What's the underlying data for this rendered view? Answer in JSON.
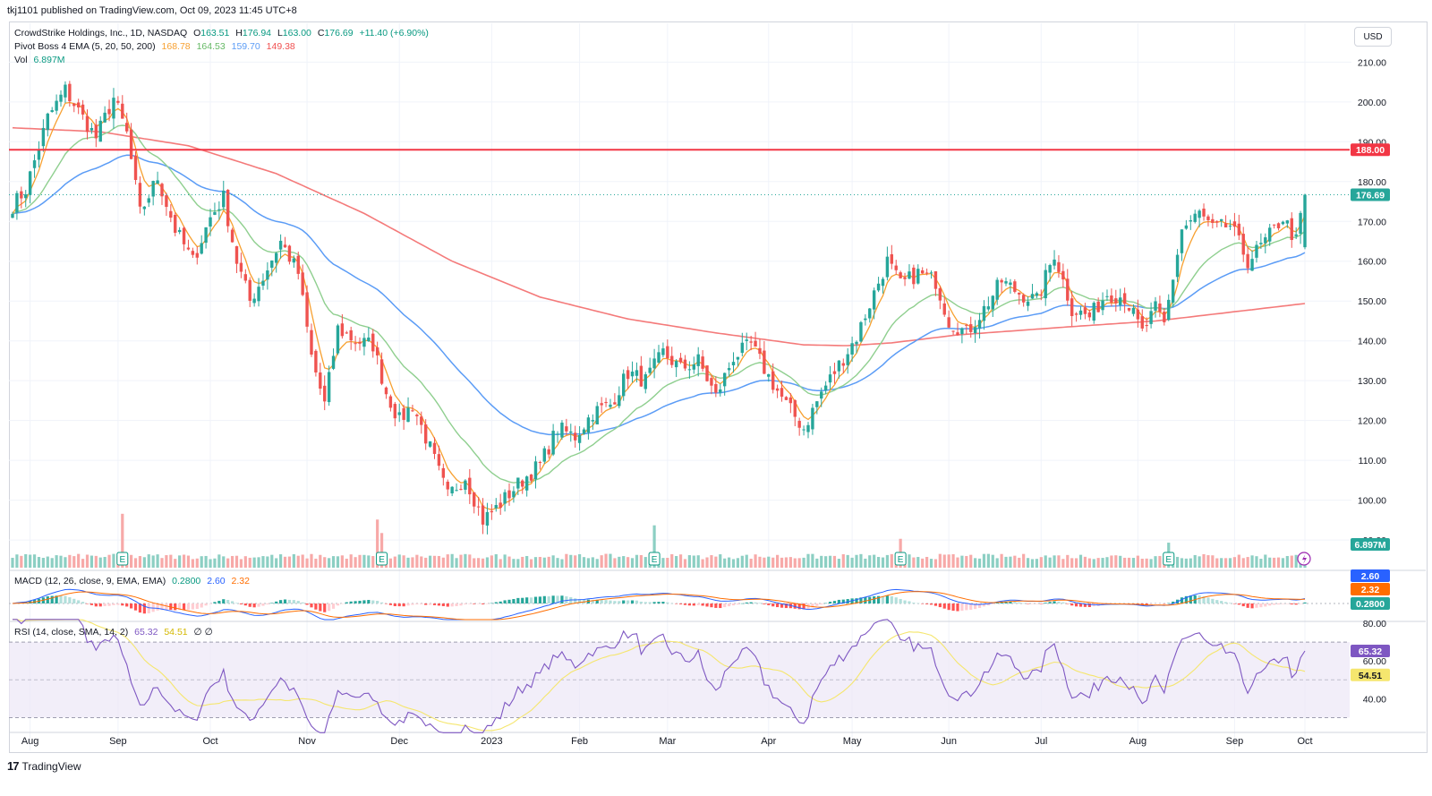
{
  "header": {
    "published": "tkj1101 published on TradingView.com, Oct 09, 2023 11:45 UTC+8"
  },
  "legend": {
    "symbol": "CrowdStrike Holdings, Inc., 1D, NASDAQ",
    "o_label": "O",
    "o": "163.51",
    "h_label": "H",
    "h": "176.94",
    "l_label": "L",
    "l": "163.00",
    "c_label": "C",
    "c": "176.69",
    "change": "+11.40 (+6.90%)",
    "ema_title": "Pivot Boss 4 EMA (5, 20, 50, 200)",
    "ema_values": [
      "168.78",
      "164.53",
      "159.70",
      "149.38"
    ],
    "vol_label": "Vol",
    "vol_value": "6.897M",
    "macd_title": "MACD (12, 26, close, 9, EMA, EMA)",
    "macd_values": [
      "0.2800",
      "2.60",
      "2.32"
    ],
    "rsi_title": "RSI (14, close, SMA, 14, 2)",
    "rsi_values": [
      "65.32",
      "54.51"
    ],
    "rsi_extra": "∅ ∅"
  },
  "currency_button": "USD",
  "footer": {
    "brand": "TradingView",
    "brand_mark": "17"
  },
  "colors": {
    "up": "#26a69a",
    "down": "#ef5350",
    "ema5": "#f7a030",
    "ema20": "#8fcf8f",
    "ema50": "#5b9cf6",
    "ema200": "#f47a7a",
    "resistance": "#f23645",
    "macd": "#2962ff",
    "signal": "#ff6d00",
    "rsi": "#7e57c2",
    "rsi_ma": "#f5e66e"
  },
  "chart_data": {
    "type": "candlestick",
    "symbol": "CrowdStrike Holdings, Inc.",
    "interval": "1D",
    "exchange": "NASDAQ",
    "x_labels": [
      "Aug",
      "Sep",
      "Oct",
      "Nov",
      "Dec",
      "2023",
      "Feb",
      "Mar",
      "Apr",
      "May",
      "Jun",
      "Jul",
      "Aug",
      "Sep",
      "Oct"
    ],
    "price_ticks": [
      "90.00",
      "100.00",
      "110.00",
      "120.00",
      "130.00",
      "140.00",
      "150.00",
      "160.00",
      "170.00",
      "180.00",
      "190.00",
      "200.00",
      "210.00"
    ],
    "ylim": [
      88,
      213
    ],
    "resistance_line": {
      "value": 188.0,
      "label": "188.00"
    },
    "last_price": {
      "value": 176.69,
      "label": "176.69"
    },
    "volume_label": "6.897M",
    "earnings_markers": [
      "Aug",
      "Nov",
      "Mar",
      "Jun",
      "Sep"
    ],
    "earnings_glyph": "E",
    "close_anchors": [
      [
        0,
        174
      ],
      [
        3,
        178
      ],
      [
        8,
        196
      ],
      [
        12,
        203
      ],
      [
        16,
        196
      ],
      [
        19,
        191
      ],
      [
        23,
        201
      ],
      [
        26,
        192
      ],
      [
        29,
        172
      ],
      [
        33,
        181
      ],
      [
        37,
        168
      ],
      [
        41,
        160
      ],
      [
        45,
        171
      ],
      [
        48,
        176
      ],
      [
        51,
        160
      ],
      [
        54,
        150
      ],
      [
        57,
        156
      ],
      [
        61,
        165
      ],
      [
        65,
        157
      ],
      [
        68,
        136
      ],
      [
        71,
        124
      ],
      [
        74,
        143
      ],
      [
        78,
        140
      ],
      [
        82,
        139
      ],
      [
        85,
        127
      ],
      [
        88,
        120
      ],
      [
        91,
        124
      ],
      [
        95,
        113
      ],
      [
        99,
        101
      ],
      [
        103,
        106
      ],
      [
        107,
        95
      ],
      [
        110,
        98
      ],
      [
        115,
        104
      ],
      [
        120,
        109
      ],
      [
        124,
        118
      ],
      [
        128,
        116
      ],
      [
        132,
        122
      ],
      [
        136,
        124
      ],
      [
        140,
        132
      ],
      [
        144,
        130
      ],
      [
        148,
        137
      ],
      [
        152,
        133
      ],
      [
        156,
        135
      ],
      [
        160,
        126
      ],
      [
        164,
        136
      ],
      [
        168,
        139
      ],
      [
        172,
        131
      ],
      [
        176,
        124
      ],
      [
        180,
        118
      ],
      [
        184,
        127
      ],
      [
        188,
        134
      ],
      [
        192,
        141
      ],
      [
        196,
        152
      ],
      [
        199,
        160
      ],
      [
        202,
        154
      ],
      [
        206,
        157
      ],
      [
        210,
        155
      ],
      [
        213,
        145
      ],
      [
        217,
        142
      ],
      [
        221,
        148
      ],
      [
        225,
        155
      ],
      [
        229,
        152
      ],
      [
        233,
        150
      ],
      [
        237,
        162
      ],
      [
        241,
        148
      ],
      [
        245,
        146
      ],
      [
        249,
        152
      ],
      [
        253,
        151
      ],
      [
        257,
        142
      ],
      [
        260,
        148
      ],
      [
        262,
        144
      ],
      [
        266,
        168
      ],
      [
        270,
        172
      ],
      [
        273,
        168
      ],
      [
        277,
        169
      ],
      [
        281,
        160
      ],
      [
        285,
        165
      ],
      [
        289,
        171
      ],
      [
        292,
        165
      ],
      [
        294,
        176.7
      ]
    ],
    "volume_spikes": [
      [
        25,
        14
      ],
      [
        83,
        12.5
      ],
      [
        84,
        9
      ],
      [
        146,
        11
      ],
      [
        202,
        7.5
      ],
      [
        263,
        6.5
      ]
    ],
    "ema_lines": [
      {
        "name": "EMA 5",
        "period": 5,
        "last": 168.78
      },
      {
        "name": "EMA 20",
        "period": 20,
        "last": 164.53
      },
      {
        "name": "EMA 50",
        "period": 50,
        "last": 159.7
      },
      {
        "name": "EMA 200",
        "period": 200,
        "last": 149.38
      }
    ],
    "ema200_anchors": [
      [
        0,
        193.5
      ],
      [
        20,
        192.5
      ],
      [
        40,
        189
      ],
      [
        60,
        182
      ],
      [
        80,
        172
      ],
      [
        100,
        160
      ],
      [
        120,
        151
      ],
      [
        140,
        145.5
      ],
      [
        160,
        142
      ],
      [
        180,
        139
      ],
      [
        190,
        138.8
      ],
      [
        200,
        139.5
      ],
      [
        215,
        141.5
      ],
      [
        240,
        143.5
      ],
      [
        260,
        145
      ],
      [
        294,
        149.38
      ]
    ],
    "macd": {
      "macd": 2.6,
      "signal": 2.32,
      "histogram": 0.28
    },
    "rsi": {
      "value": 65.32,
      "ma": 54.51,
      "ticks": [
        "40.00",
        "60.00",
        "80.00"
      ],
      "levels": [
        30,
        70
      ]
    }
  }
}
